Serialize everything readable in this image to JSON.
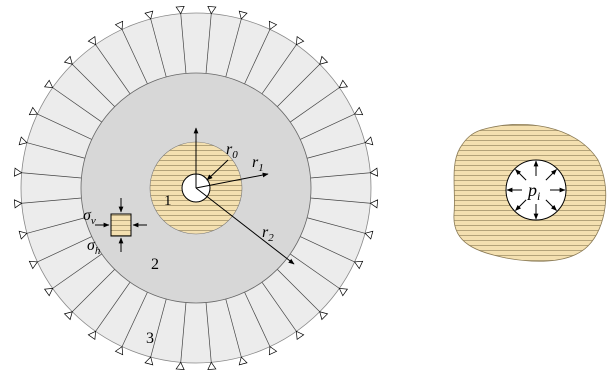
{
  "labels": {
    "r0": "r",
    "r0_sub": "0",
    "r1": "r",
    "r1_sub": "1",
    "r2": "r",
    "r2_sub": "2",
    "zone1": "1",
    "zone2": "2",
    "zone3": "3",
    "sigma_v": "σ",
    "sigma_v_sub": "v",
    "sigma_h": "σ",
    "sigma_h_sub": "h",
    "pi": "p",
    "pi_sub": "i"
  },
  "colors": {
    "ring3": "#ececec",
    "ring2": "#d7d7d7",
    "zone1": "#f4e0b0",
    "hatch": "#8a7a55",
    "stroke": "#000000"
  }
}
